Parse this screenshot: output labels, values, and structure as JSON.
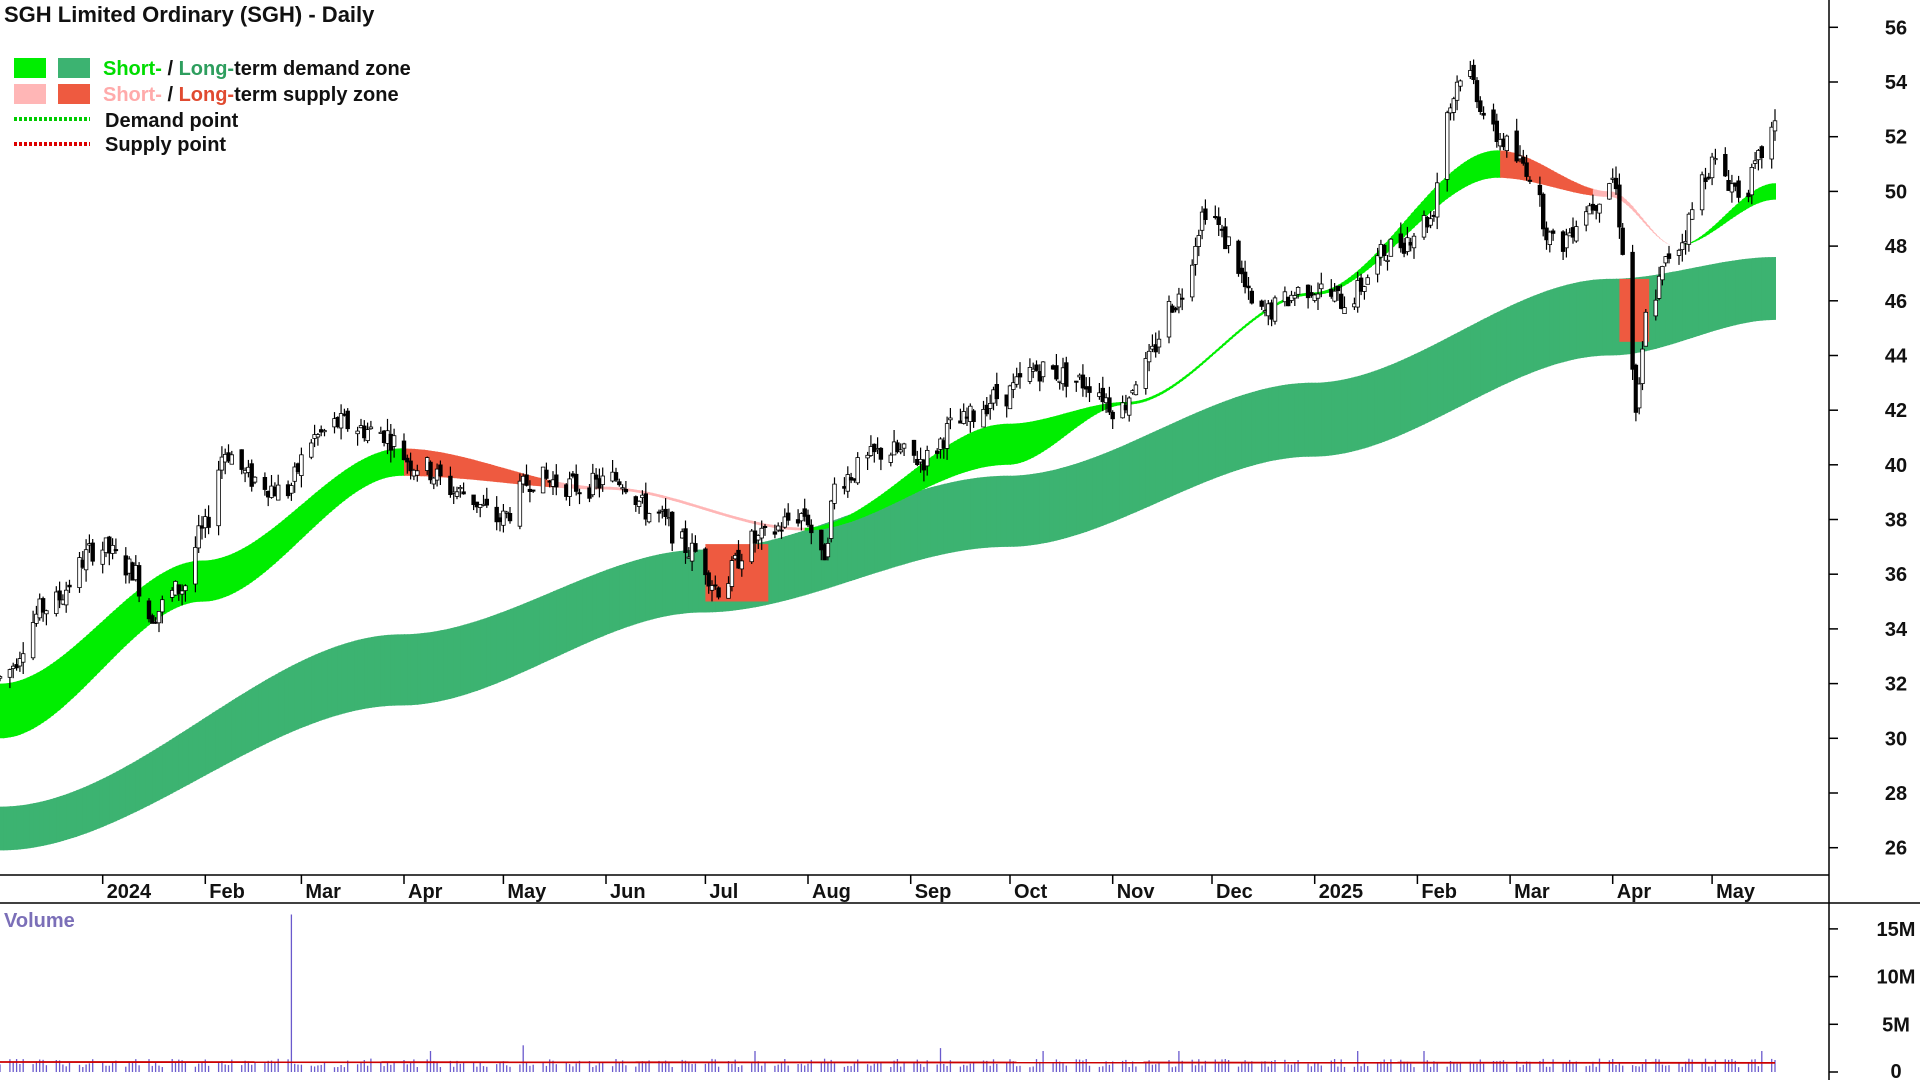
{
  "title": "SGH Limited Ordinary (SGH) - Daily",
  "legend": {
    "demand_zone": {
      "short": "Short-",
      "sep": " / ",
      "long": "Long-",
      "rest": "term demand zone"
    },
    "supply_zone": {
      "short": "Short-",
      "sep": " / ",
      "long": "Long-",
      "rest": "term supply zone"
    },
    "demand_point": "Demand point",
    "supply_point": "Supply point"
  },
  "colors": {
    "short_demand": "#00ee00",
    "long_demand": "#3cb371",
    "short_supply": "#ffb6b6",
    "long_supply": "#ee5a40",
    "demand_point": "#00cc00",
    "supply_point": "#dd0000",
    "volume_bar": "#6a5acd",
    "volume_avg": "#cc0000"
  },
  "volume_label": "Volume",
  "chart_data": {
    "type": "candlestick",
    "price_axis": {
      "ticks": [
        26,
        28,
        30,
        32,
        34,
        36,
        38,
        40,
        42,
        44,
        46,
        48,
        50,
        52,
        54,
        56
      ],
      "range": [
        25,
        57
      ]
    },
    "time_axis": {
      "labels": [
        "2024",
        "Feb",
        "Mar",
        "Apr",
        "May",
        "Jun",
        "Jul",
        "Aug",
        "Sep",
        "Oct",
        "Nov",
        "Dec",
        "2025",
        "Feb",
        "Mar",
        "Apr",
        "May"
      ],
      "bold": [
        "2024",
        "2025"
      ]
    },
    "price_path": [
      [
        "2023-12-01",
        32.2
      ],
      [
        "2023-12-15",
        34.8
      ],
      [
        "2023-12-31",
        37.0
      ],
      [
        "2024-01-10",
        36.2
      ],
      [
        "2024-01-15",
        34.5
      ],
      [
        "2024-01-25",
        35.5
      ],
      [
        "2024-01-31",
        37.5
      ],
      [
        "2024-02-07",
        40.5
      ],
      [
        "2024-02-15",
        39.5
      ],
      [
        "2024-02-25",
        39.0
      ],
      [
        "2024-03-05",
        41.0
      ],
      [
        "2024-03-12",
        41.5
      ],
      [
        "2024-03-25",
        41.2
      ],
      [
        "2024-04-05",
        40.0
      ],
      [
        "2024-04-18",
        39.0
      ],
      [
        "2024-04-30",
        38.0
      ],
      [
        "2024-05-10",
        39.5
      ],
      [
        "2024-05-25",
        39.2
      ],
      [
        "2024-06-05",
        39.5
      ],
      [
        "2024-06-15",
        38.2
      ],
      [
        "2024-06-28",
        36.8
      ],
      [
        "2024-07-05",
        35.5
      ],
      [
        "2024-07-15",
        37.2
      ],
      [
        "2024-07-31",
        38.2
      ],
      [
        "2024-08-05",
        36.5
      ],
      [
        "2024-08-10",
        39.5
      ],
      [
        "2024-08-25",
        40.5
      ],
      [
        "2024-09-05",
        40.2
      ],
      [
        "2024-09-15",
        41.5
      ],
      [
        "2024-09-28",
        42.5
      ],
      [
        "2024-10-10",
        43.5
      ],
      [
        "2024-10-25",
        43.0
      ],
      [
        "2024-11-03",
        42.0
      ],
      [
        "2024-11-10",
        43.5
      ],
      [
        "2024-11-20",
        46.0
      ],
      [
        "2024-11-30",
        49.5
      ],
      [
        "2024-12-05",
        48.2
      ],
      [
        "2024-12-15",
        45.5
      ],
      [
        "2024-12-31",
        46.5
      ],
      [
        "2025-01-10",
        46.0
      ],
      [
        "2025-01-25",
        48.0
      ],
      [
        "2025-02-05",
        49.0
      ],
      [
        "2025-02-10",
        53.0
      ],
      [
        "2025-02-15",
        54.5
      ],
      [
        "2025-02-25",
        52.0
      ],
      [
        "2025-03-05",
        51.0
      ],
      [
        "2025-03-15",
        48.0
      ],
      [
        "2025-03-25",
        49.5
      ],
      [
        "2025-04-01",
        50.5
      ],
      [
        "2025-04-05",
        47.5
      ],
      [
        "2025-04-08",
        42.0
      ],
      [
        "2025-04-12",
        46.0
      ],
      [
        "2025-04-20",
        48.0
      ],
      [
        "2025-05-01",
        51.0
      ],
      [
        "2025-05-10",
        50.0
      ],
      [
        "2025-05-20",
        52.2
      ]
    ],
    "short_term_zone": {
      "upper": [
        [
          "2023-12-01",
          32.0
        ],
        [
          "2024-01-31",
          36.5
        ],
        [
          "2024-03-31",
          40.6
        ],
        [
          "2024-05-31",
          39.2
        ],
        [
          "2024-07-31",
          37.7
        ],
        [
          "2024-09-30",
          41.5
        ],
        [
          "2024-11-05",
          42.3
        ],
        [
          "2024-12-31",
          46.3
        ],
        [
          "2025-02-25",
          51.5
        ],
        [
          "2025-03-31",
          50.0
        ],
        [
          "2025-04-20",
          48.0
        ],
        [
          "2025-05-20",
          50.3
        ]
      ],
      "lower": [
        [
          "2023-12-01",
          30.0
        ],
        [
          "2024-01-31",
          35.0
        ],
        [
          "2024-03-31",
          39.6
        ],
        [
          "2024-05-31",
          39.1
        ],
        [
          "2024-07-31",
          37.6
        ],
        [
          "2024-09-30",
          40.0
        ],
        [
          "2024-11-05",
          42.2
        ],
        [
          "2024-12-31",
          46.2
        ],
        [
          "2025-02-25",
          50.5
        ],
        [
          "2025-03-31",
          49.8
        ],
        [
          "2025-04-20",
          48.0
        ],
        [
          "2025-05-20",
          49.7
        ]
      ]
    },
    "long_term_zone": {
      "upper": [
        [
          "2023-12-01",
          27.5
        ],
        [
          "2024-03-31",
          33.8
        ],
        [
          "2024-06-30",
          36.9
        ],
        [
          "2024-09-30",
          39.6
        ],
        [
          "2024-12-31",
          43.0
        ],
        [
          "2025-03-31",
          46.8
        ],
        [
          "2025-05-20",
          47.6
        ]
      ],
      "lower": [
        [
          "2023-12-01",
          25.9
        ],
        [
          "2024-03-31",
          31.2
        ],
        [
          "2024-06-30",
          34.6
        ],
        [
          "2024-09-30",
          37.0
        ],
        [
          "2024-12-31",
          40.3
        ],
        [
          "2025-03-31",
          44.0
        ],
        [
          "2025-05-20",
          45.3
        ]
      ]
    },
    "long_term_supply_zones": [
      {
        "from": "2024-07-01",
        "to": "2024-07-20",
        "upper": 37.1,
        "lower": 35.0
      },
      {
        "from": "2025-04-03",
        "to": "2025-04-12",
        "upper": 46.8,
        "lower": 44.5
      }
    ],
    "volume": {
      "label": "Volume",
      "unit": "M",
      "ticks": [
        0,
        5,
        10,
        15
      ],
      "tick_labels": [
        "0",
        "5M",
        "10M",
        "15M"
      ],
      "typical": 1.0,
      "spikes": [
        [
          "2024-02-27",
          16.5
        ],
        [
          "2024-05-07",
          2.8
        ],
        [
          "2024-09-10",
          2.5
        ]
      ]
    }
  }
}
